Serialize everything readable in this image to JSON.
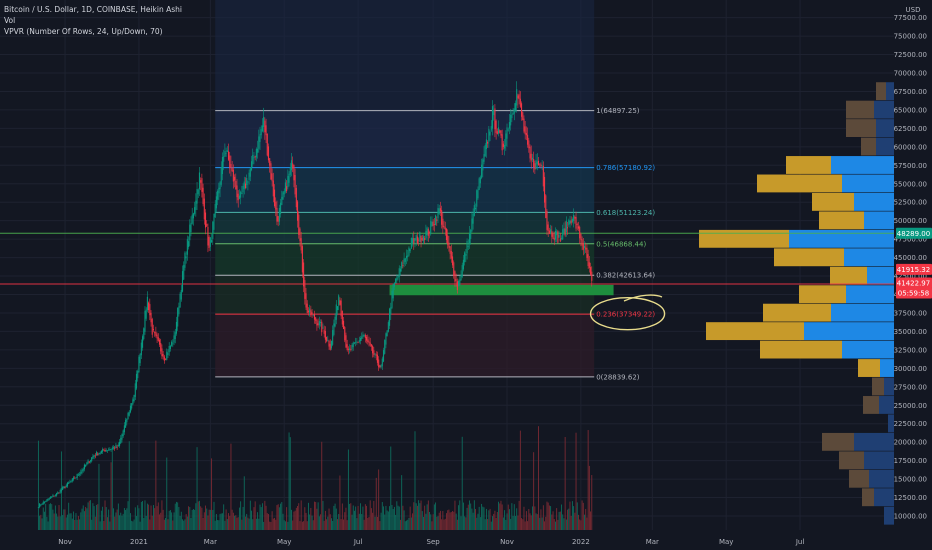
{
  "legend": {
    "symbol_line": "Bitcoin / U.S. Dollar, 1D, COINBASE, Heikin Ashi",
    "volume_line": "Vol",
    "vpvr_line": "VPVR (Number Of Rows, 24, Up/Down, 70)"
  },
  "price_axis": {
    "currency": "USD",
    "tick_labels": [
      "77500.00",
      "75000.00",
      "72500.00",
      "70000.00",
      "67500.00",
      "65000.00",
      "62500.00",
      "60000.00",
      "57500.00",
      "55000.00",
      "52500.00",
      "50000.00",
      "47500.00",
      "45000.00",
      "42500.00",
      "40000.00",
      "37500.00",
      "35000.00",
      "32500.00",
      "30000.00",
      "27500.00",
      "25000.00",
      "22500.00",
      "20000.00",
      "17500.00",
      "15000.00",
      "12500.00",
      "10000.00"
    ]
  },
  "price_badges": {
    "green": {
      "text": "48289.00",
      "value": 48289,
      "color": "#089981"
    },
    "red_1": {
      "text": "41915.32",
      "value": 41915.32,
      "color": "#f23645"
    },
    "red_2": {
      "text": "41422.97",
      "value": 41422.97,
      "color": "#f23645"
    },
    "countdown": {
      "text": "05:59:58",
      "color": "#f23645"
    }
  },
  "time_axis": {
    "labels": [
      "Nov",
      "2021",
      "Mar",
      "May",
      "Jul",
      "Sep",
      "Nov",
      "2022",
      "Mar",
      "May",
      "Jul"
    ]
  },
  "chart_data": {
    "type": "candlestick",
    "style": "Heikin Ashi",
    "symbol": "BTCUSD",
    "exchange": "COINBASE",
    "timeframe": "1D",
    "ylim": [
      8500,
      80000
    ],
    "y_scale": "linear",
    "x_range": [
      "2020-10-08",
      "2022-07-31"
    ],
    "grid": true,
    "price_path": [
      [
        "2020-10-10",
        11400
      ],
      [
        "2020-10-25",
        13000
      ],
      [
        "2020-11-10",
        15300
      ],
      [
        "2020-11-25",
        18300
      ],
      [
        "2020-12-05",
        19000
      ],
      [
        "2020-12-15",
        19400
      ],
      [
        "2020-12-28",
        26500
      ],
      [
        "2021-01-08",
        39500
      ],
      [
        "2021-01-12",
        35000
      ],
      [
        "2021-01-22",
        31500
      ],
      [
        "2021-01-30",
        34000
      ],
      [
        "2021-02-08",
        45000
      ],
      [
        "2021-02-20",
        56000
      ],
      [
        "2021-02-28",
        46000
      ],
      [
        "2021-03-13",
        60000
      ],
      [
        "2021-03-25",
        52500
      ],
      [
        "2021-04-05",
        58000
      ],
      [
        "2021-04-14",
        63500
      ],
      [
        "2021-04-25",
        50000
      ],
      [
        "2021-05-08",
        58000
      ],
      [
        "2021-05-19",
        38000
      ],
      [
        "2021-05-30",
        36000
      ],
      [
        "2021-06-08",
        33000
      ],
      [
        "2021-06-15",
        40000
      ],
      [
        "2021-06-22",
        32000
      ],
      [
        "2021-07-05",
        34500
      ],
      [
        "2021-07-20",
        30000
      ],
      [
        "2021-07-30",
        41000
      ],
      [
        "2021-08-14",
        47000
      ],
      [
        "2021-08-28",
        48500
      ],
      [
        "2021-09-06",
        51500
      ],
      [
        "2021-09-21",
        41000
      ],
      [
        "2021-10-01",
        48000
      ],
      [
        "2021-10-10",
        56000
      ],
      [
        "2021-10-20",
        64500
      ],
      [
        "2021-10-28",
        60000
      ],
      [
        "2021-11-09",
        67500
      ],
      [
        "2021-11-20",
        58000
      ],
      [
        "2021-11-30",
        57500
      ],
      [
        "2021-12-04",
        49000
      ],
      [
        "2021-12-15",
        47500
      ],
      [
        "2021-12-25",
        50800
      ],
      [
        "2022-01-05",
        45500
      ],
      [
        "2022-01-10",
        41400
      ]
    ],
    "volume_ylim": [
      0,
      100
    ],
    "volume_profile": {
      "rows": 24,
      "value_area_pct": 70,
      "mode": "Up/Down",
      "bins": [
        {
          "low": 8750,
          "high": 11250,
          "up": 10,
          "down": 0
        },
        {
          "low": 11250,
          "high": 13750,
          "up": 20,
          "down": 12
        },
        {
          "low": 13750,
          "high": 16250,
          "up": 25,
          "down": 20
        },
        {
          "low": 16250,
          "high": 18750,
          "up": 30,
          "down": 25
        },
        {
          "low": 18750,
          "high": 21250,
          "up": 40,
          "down": 32
        },
        {
          "low": 21250,
          "high": 23750,
          "up": 6,
          "down": 0
        },
        {
          "low": 23750,
          "high": 26250,
          "up": 15,
          "down": 16
        },
        {
          "low": 26250,
          "high": 28750,
          "up": 10,
          "down": 12
        },
        {
          "low": 28750,
          "high": 31250,
          "up": 14,
          "down": 22
        },
        {
          "low": 31250,
          "high": 33750,
          "up": 52,
          "down": 82
        },
        {
          "low": 33750,
          "high": 36250,
          "up": 90,
          "down": 98
        },
        {
          "low": 36250,
          "high": 38750,
          "up": 63,
          "down": 68
        },
        {
          "low": 38750,
          "high": 41250,
          "up": 48,
          "down": 47
        },
        {
          "low": 41250,
          "high": 43750,
          "up": 27,
          "down": 37
        },
        {
          "low": 43750,
          "high": 46250,
          "up": 50,
          "down": 70
        },
        {
          "low": 46250,
          "high": 48750,
          "up": 105,
          "down": 90
        },
        {
          "low": 48750,
          "high": 51250,
          "up": 30,
          "down": 45
        },
        {
          "low": 51250,
          "high": 53750,
          "up": 40,
          "down": 42
        },
        {
          "low": 53750,
          "high": 56250,
          "up": 52,
          "down": 85
        },
        {
          "low": 56250,
          "high": 58750,
          "up": 63,
          "down": 45
        },
        {
          "low": 58750,
          "high": 61250,
          "up": 18,
          "down": 15
        },
        {
          "low": 61250,
          "high": 63750,
          "up": 18,
          "down": 30
        },
        {
          "low": 63750,
          "high": 66250,
          "up": 20,
          "down": 28
        },
        {
          "low": 66250,
          "high": 68750,
          "up": 8,
          "down": 10
        }
      ],
      "up_color": "#1e88e5",
      "down_color": "#c79a2a",
      "outside_up_color": "#1f3f73",
      "outside_down_color": "#5c4a3a"
    },
    "fibonacci": {
      "start_date": "2021-03-05",
      "end_date": "2022-01-12",
      "levels": [
        {
          "ratio": "1",
          "price": 64897.25,
          "label": "1(64897.25)",
          "color": "#b2b5be",
          "zone": "#1c2a4a"
        },
        {
          "ratio": "0.786",
          "price": 57180.92,
          "label": "0.786(57180.92)",
          "color": "#2196f3",
          "zone": "#14354e"
        },
        {
          "ratio": "0.618",
          "price": 51123.24,
          "label": "0.618(51123.24)",
          "color": "#4db6ac",
          "zone": "#143a3d"
        },
        {
          "ratio": "0.5",
          "price": 46868.44,
          "label": "0.5(46868.44)",
          "color": "#66bb6a",
          "zone": "#163a2a"
        },
        {
          "ratio": "0.382",
          "price": 42613.64,
          "label": "0.382(42613.64)",
          "color": "#b2b5be",
          "zone": "#1a2d24"
        },
        {
          "ratio": "0.236",
          "price": 37349.22,
          "label": "0.236(37349.22)",
          "color": "#f23645",
          "zone": "#2e1c28"
        },
        {
          "ratio": "0",
          "price": 28839.62,
          "label": "0(28839.62)",
          "color": "#b2b5be",
          "zone": "#2e1c28"
        }
      ]
    },
    "support_zone": {
      "start_date": "2021-07-27",
      "end_date": "2022-01-28",
      "low": 39900,
      "high": 41300,
      "color": "#1e8e3e"
    },
    "horizontal_lines": [
      {
        "price": 48289,
        "color": "#4caf50"
      },
      {
        "price": 41422.97,
        "color": "#f23645"
      }
    ],
    "highlight_ellipse": {
      "center_date": "2022-01-28",
      "center_price": 37400,
      "color": "#e8dc8c"
    },
    "colors": {
      "up": "#089981",
      "down": "#f23645",
      "background": "#131722",
      "grid": "#1e2230"
    }
  }
}
